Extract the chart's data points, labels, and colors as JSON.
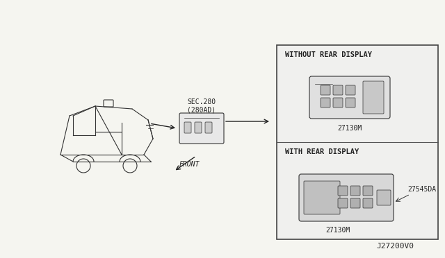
{
  "background_color": "#f5f5f0",
  "title_text": "",
  "diagram_id": "J27200V0",
  "sec_label": "SEC.280\n(280AD)",
  "front_label": "FRONT",
  "arrow_color": "#000000",
  "box_outline_color": "#555555",
  "box_fill_color": "#ffffff",
  "text_color": "#222222",
  "without_rear_label": "WITHOUT REAR DISPLAY",
  "with_rear_label": "WITH REAR DISPLAY",
  "part_label_1": "27130M",
  "part_label_2": "27545DA",
  "part_label_3": "27130M",
  "font_size_small": 7,
  "font_size_medium": 8,
  "font_size_diagram_id": 8
}
